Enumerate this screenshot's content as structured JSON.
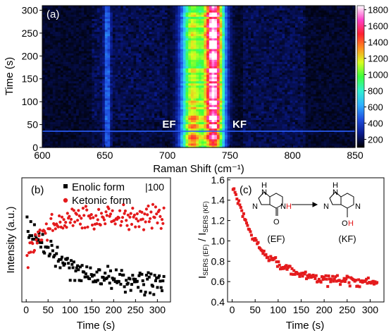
{
  "chart_data": [
    {
      "panel": "(a)",
      "type": "heatmap",
      "xlabel": "Raman Shift (cm⁻¹)",
      "ylabel": "Time (s)",
      "xlim": [
        600,
        850
      ],
      "ylim": [
        0,
        310
      ],
      "xticks": [
        600,
        650,
        700,
        750,
        800,
        850
      ],
      "yticks": [
        0,
        50,
        100,
        150,
        200,
        250,
        300
      ],
      "colorbar": {
        "ticks": [
          200,
          400,
          600,
          800,
          1000,
          1200,
          1400,
          1600,
          1800
        ],
        "range": [
          100,
          1850
        ],
        "colors": [
          "#000000",
          "#0a1a8c",
          "#1f4fe0",
          "#2fb0ff",
          "#30f0d0",
          "#3cff3c",
          "#d8ff20",
          "#ff9020",
          "#ff2030",
          "#ff40c8",
          "#ffffff"
        ]
      },
      "bands": [
        {
          "label": "EF",
          "center": 720,
          "width": 11,
          "peak": 1150
        },
        {
          "label": "KF",
          "center": 737,
          "width": 10,
          "peak": 1700
        },
        {
          "label": "",
          "center": 652,
          "width": 3,
          "peak": 320
        }
      ],
      "annotations": [
        "EF",
        "KF"
      ]
    },
    {
      "panel": "(b)",
      "type": "scatter",
      "xlabel": "Time (s)",
      "ylabel": "Intensity (a.u.)",
      "xlim": [
        -10,
        330
      ],
      "xticks": [
        0,
        50,
        100,
        150,
        200,
        250,
        300
      ],
      "scale_label": "|100",
      "series": [
        {
          "name": "Enolic form",
          "color": "#000000",
          "marker": "square",
          "trend": {
            "start": 5.2,
            "end": 1.15,
            "tau": 75
          }
        },
        {
          "name": "Ketonic form",
          "color": "#e41a1c",
          "marker": "circle",
          "trend": {
            "start": 2.6,
            "end": 5.55,
            "tau": 40
          }
        }
      ],
      "ylim": [
        0,
        8
      ]
    },
    {
      "panel": "(c)",
      "type": "scatter",
      "xlabel": "Time (s)",
      "ylabel": "I SERS(EF) / I SERS(KF)",
      "xlim": [
        -10,
        330
      ],
      "ylim": [
        0.4,
        1.62
      ],
      "xticks": [
        0,
        50,
        100,
        150,
        200,
        250,
        300
      ],
      "yticks": [
        0.4,
        0.6,
        0.8,
        1.0,
        1.2,
        1.4,
        1.6
      ],
      "series": [
        {
          "color": "#e41a1c",
          "marker": "square",
          "trend": {
            "start": 1.57,
            "end": 0.59,
            "tau": 60
          }
        }
      ],
      "inset": {
        "left_label": "(EF)",
        "right_label": "(KF)",
        "atoms": [
          "N",
          "H",
          "O"
        ]
      }
    }
  ]
}
